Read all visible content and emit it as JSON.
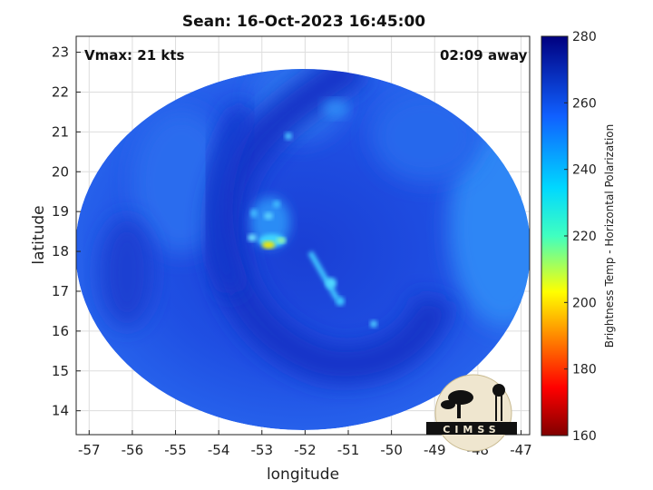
{
  "title": "Sean: 16-Oct-2023 16:45:00",
  "annotations": {
    "vmax": "Vmax: 21 kts",
    "time_away": "02:09 away"
  },
  "axes": {
    "xlabel": "longitude",
    "ylabel": "latitude",
    "xticks": [
      "-57",
      "-56",
      "-55",
      "-54",
      "-53",
      "-52",
      "-51",
      "-50",
      "-49",
      "-48",
      "-47"
    ],
    "yticks": [
      "23",
      "22",
      "21",
      "20",
      "19",
      "18",
      "17",
      "16",
      "15",
      "14"
    ],
    "xlim": [
      -57.3,
      -46.8
    ],
    "ylim": [
      13.4,
      23.4
    ],
    "grid": true
  },
  "colorbar": {
    "label": "Brightness Temp - Horizontal Polarization",
    "ticks": [
      "280",
      "260",
      "240",
      "220",
      "200",
      "180",
      "160"
    ],
    "range": [
      160,
      280
    ],
    "colormap": "jet"
  },
  "storm_center": {
    "lon": -52.8,
    "lat": 18.2
  },
  "swath_center": {
    "lon": -52.0,
    "lat": 18.4
  },
  "logo": {
    "text": "CIMSS"
  },
  "colors": {
    "background_field": "#1f4fe0",
    "swath_edge": "#2a66ee",
    "warm_core": "#f5e000"
  }
}
